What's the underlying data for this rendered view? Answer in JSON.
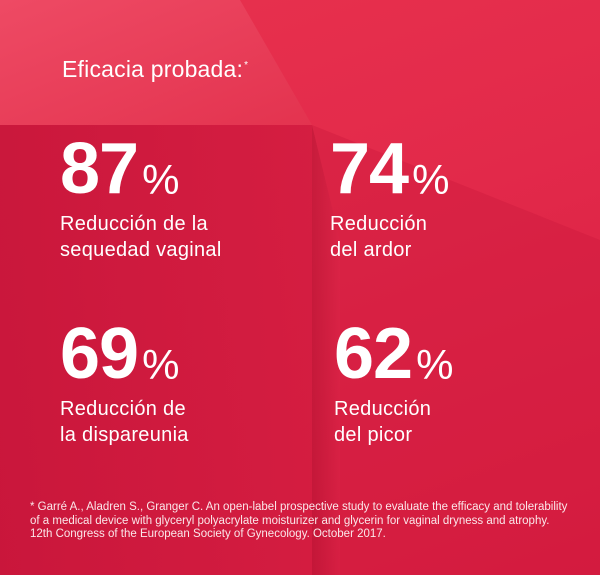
{
  "heading": "Eficacia probada:",
  "heading_mark": "*",
  "stats": [
    {
      "value": "87",
      "unit": "%",
      "line1": "Reducción de la",
      "line2": "sequedad vaginal"
    },
    {
      "value": "74",
      "unit": "%",
      "line1": "Reducción",
      "line2": "del ardor"
    },
    {
      "value": "69",
      "unit": "%",
      "line1": "Reducción de",
      "line2": "la dispareunia"
    },
    {
      "value": "62",
      "unit": "%",
      "line1": "Reducción",
      "line2": "del picor"
    }
  ],
  "footnote": "* Garré A., Aladren S., Granger C. An open-label prospective study to evaluate the efficacy and tolerability of a medical device with glyceryl polyacrylate moisturizer and glycerin for vaginal dryness and atrophy. 12th Congress of the European Society of Gynecology. October 2017.",
  "colors": {
    "background": "#e2294a",
    "shadow": "#b8102e",
    "text": "#ffffff"
  }
}
